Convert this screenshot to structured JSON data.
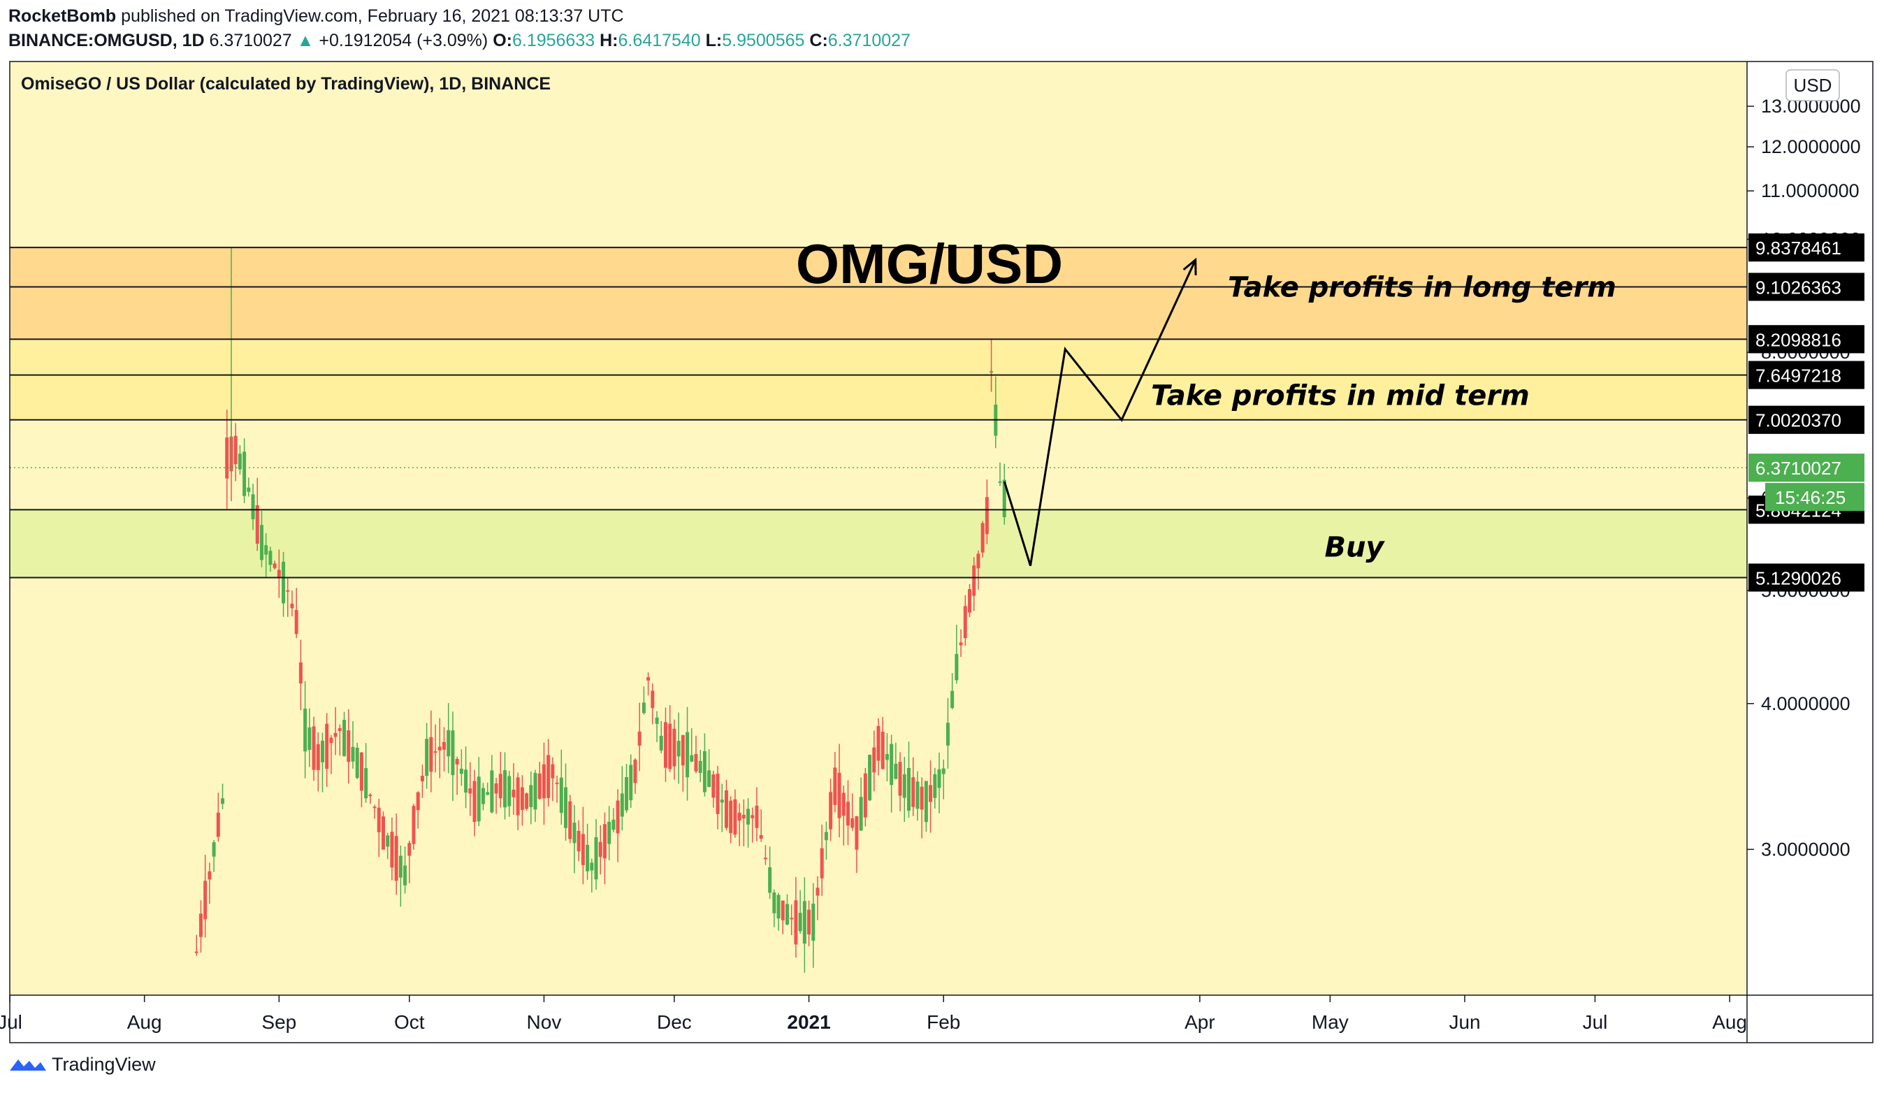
{
  "header": {
    "author": "RocketBomb",
    "published_text": "published on TradingView.com, February 16, 2021 08:13:37 UTC",
    "symbol": "BINANCE:OMGUSD, 1D",
    "last": "6.3710027",
    "change": "+0.1912054 (+3.09%)",
    "o_label": "O:",
    "o": "6.1956633",
    "h_label": "H:",
    "h": "6.6417540",
    "l_label": "L:",
    "l": "5.9500565",
    "c_label": "C:",
    "c": "6.3710027"
  },
  "footer": {
    "brand": "TradingView"
  },
  "colors": {
    "background": "#fff7c2",
    "zone_long": "#ffd98e",
    "zone_mid": "#fff09e",
    "zone_buy": "#e8f3a6",
    "up": "#26a69a",
    "up_candle": "#4caf50",
    "down_candle": "#ef5350",
    "last_price": "#4caf50"
  },
  "chart_data": {
    "type": "candlestick",
    "legend": "OmiseGO / US Dollar (calculated by TradingView), 1D, BINANCE",
    "title": "OMG/USD",
    "currency": "USD",
    "y_scale": "log",
    "ylim": [
      2.25,
      14.2
    ],
    "y_ticks": [
      "3.0000000",
      "4.0000000",
      "5.0000000",
      "6.0000000",
      "8.0000000",
      "10.0000000",
      "11.0000000",
      "12.0000000",
      "13.0000000"
    ],
    "y_tick_values": [
      3,
      4,
      5,
      6,
      8,
      10,
      11,
      12,
      13
    ],
    "x_ticks": [
      "Jul",
      "Aug",
      "Sep",
      "Oct",
      "Nov",
      "Dec",
      "2021",
      "Feb",
      "Apr",
      "May",
      "Jun",
      "Jul",
      "Aug"
    ],
    "x_tick_dates": [
      "2020-07-01",
      "2020-08-01",
      "2020-09-01",
      "2020-10-01",
      "2020-11-01",
      "2020-12-01",
      "2021-01-01",
      "2021-02-01",
      "2021-04-01",
      "2021-05-01",
      "2021-06-01",
      "2021-07-01",
      "2021-08-01"
    ],
    "x_range": [
      "2020-07-01",
      "2021-08-05"
    ],
    "levels": [
      {
        "label": "9.8378461",
        "value": 9.8378461
      },
      {
        "label": "9.1026363",
        "value": 9.1026363
      },
      {
        "label": "8.2098816",
        "value": 8.2098816
      },
      {
        "label": "7.6497218",
        "value": 7.6497218
      },
      {
        "label": "7.0020370",
        "value": 7.002037
      },
      {
        "label": "5.8642124",
        "value": 5.8642124
      },
      {
        "label": "5.1290026",
        "value": 5.1290026
      }
    ],
    "last_price": {
      "label": "6.3710027",
      "value": 6.3710027
    },
    "countdown": "15:46:25",
    "zones": [
      {
        "text": "Take profits in long term",
        "from": 8.2098816,
        "to": 9.8378461,
        "label_price": 9.1026363,
        "label_date": "2021-03-15"
      },
      {
        "text": "Take profits in mid term",
        "from": 7.002037,
        "to": 8.2098816,
        "label_price": 7.35,
        "label_date": "2021-03-10"
      },
      {
        "text": "Buy",
        "from": 5.1290026,
        "to": 5.8642124,
        "label_price": 5.45,
        "label_date": "2021-03-05"
      }
    ],
    "projection_path": [
      {
        "date": "2021-02-15",
        "price": 6.2
      },
      {
        "date": "2021-02-21",
        "price": 5.25
      },
      {
        "date": "2021-02-29",
        "price": 8.05
      },
      {
        "date": "2021-03-14",
        "price": 7.0
      },
      {
        "date": "2021-03-31",
        "price": 9.6
      }
    ],
    "candles_anchor": [
      [
        "2020-08-13",
        2.45
      ],
      [
        "2020-08-16",
        2.85
      ],
      [
        "2020-08-19",
        3.3
      ],
      [
        "2020-08-20",
        6.5
      ],
      [
        "2020-08-22",
        6.6
      ],
      [
        "2020-08-24",
        6.3
      ],
      [
        "2020-08-28",
        5.5
      ],
      [
        "2020-09-03",
        5.0
      ],
      [
        "2020-09-05",
        4.7
      ],
      [
        "2020-09-07",
        3.8
      ],
      [
        "2020-09-10",
        3.6
      ],
      [
        "2020-09-15",
        3.8
      ],
      [
        "2020-09-20",
        3.5
      ],
      [
        "2020-09-25",
        3.1
      ],
      [
        "2020-09-30",
        2.85
      ],
      [
        "2020-10-05",
        3.6
      ],
      [
        "2020-10-10",
        3.7
      ],
      [
        "2020-10-16",
        3.3
      ],
      [
        "2020-10-22",
        3.4
      ],
      [
        "2020-10-28",
        3.3
      ],
      [
        "2020-11-03",
        3.5
      ],
      [
        "2020-11-08",
        3.1
      ],
      [
        "2020-11-12",
        2.9
      ],
      [
        "2020-11-18",
        3.2
      ],
      [
        "2020-11-22",
        3.5
      ],
      [
        "2020-11-25",
        4.2
      ],
      [
        "2020-11-28",
        3.7
      ],
      [
        "2020-12-03",
        3.65
      ],
      [
        "2020-12-08",
        3.5
      ],
      [
        "2020-12-14",
        3.2
      ],
      [
        "2020-12-20",
        3.2
      ],
      [
        "2020-12-24",
        2.7
      ],
      [
        "2020-12-29",
        2.6
      ],
      [
        "2021-01-02",
        2.6
      ],
      [
        "2021-01-07",
        3.4
      ],
      [
        "2021-01-12",
        3.1
      ],
      [
        "2021-01-17",
        3.7
      ],
      [
        "2021-01-23",
        3.4
      ],
      [
        "2021-01-28",
        3.3
      ],
      [
        "2021-02-01",
        3.5
      ],
      [
        "2021-02-04",
        4.3
      ],
      [
        "2021-02-07",
        4.9
      ],
      [
        "2021-02-09",
        5.3
      ],
      [
        "2021-02-11",
        5.8
      ],
      [
        "2021-02-12",
        7.7
      ],
      [
        "2021-02-13",
        7.0
      ],
      [
        "2021-02-14",
        6.2
      ],
      [
        "2021-02-15",
        6.0
      ],
      [
        "2021-02-16",
        6.37
      ]
    ]
  }
}
